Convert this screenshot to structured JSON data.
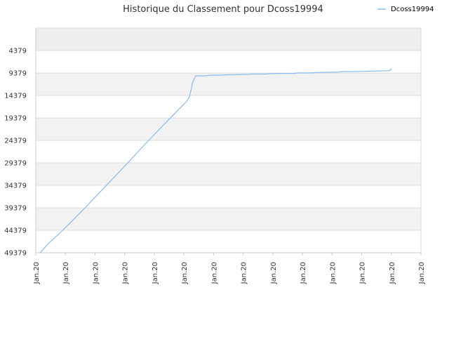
{
  "chart_data": {
    "type": "line",
    "title": "Historique du Classement pour Dcoss19994",
    "xlabel": "",
    "ylabel": "",
    "y_reversed": true,
    "ylim": [
      -641,
      49379
    ],
    "y_ticks": [
      "4379",
      "9379",
      "14379",
      "19379",
      "24379",
      "29379",
      "34379",
      "39379",
      "44379",
      "49379"
    ],
    "x_ticks": [
      "Jan.20",
      "Jan.20",
      "Jan.20",
      "Jan.20",
      "Jan.20",
      "Jan.20",
      "Jan.20",
      "Jan.20",
      "Jan.20",
      "Jan.20",
      "Jan.20",
      "Jan.20",
      "Jan.20",
      "Jan.20"
    ],
    "grid": true,
    "legend": "top-right",
    "colors": {
      "line": "#88bbee",
      "band": "#f2f2f2",
      "top_band": "#eeeeee",
      "grid": "#dddddd",
      "axis": "#cccccc"
    },
    "series": [
      {
        "name": "Dcoss19994",
        "x": [
          0,
          0.3,
          0.6,
          1.0,
          1.5,
          2.0,
          2.5,
          3.0,
          3.5,
          4.0,
          4.5,
          4.9,
          5.0,
          5.1,
          5.2,
          5.5,
          5.7,
          6.0,
          6.3,
          6.5,
          7.0,
          7.1,
          7.5,
          7.8,
          8.0,
          8.5,
          8.6,
          9.0,
          9.3,
          9.5,
          10.0,
          10.1,
          10.5,
          10.8,
          11.0,
          11.4,
          11.6,
          11.7,
          11.75
        ],
        "y": [
          49379,
          47200,
          45400,
          42800,
          39400,
          35900,
          32400,
          28900,
          25300,
          21800,
          18400,
          15700,
          14600,
          11500,
          10000,
          10000,
          9850,
          9850,
          9750,
          9750,
          9650,
          9600,
          9600,
          9500,
          9450,
          9450,
          9350,
          9350,
          9250,
          9200,
          9150,
          9050,
          9050,
          9000,
          8950,
          8900,
          8850,
          8800,
          8350
        ]
      }
    ]
  }
}
